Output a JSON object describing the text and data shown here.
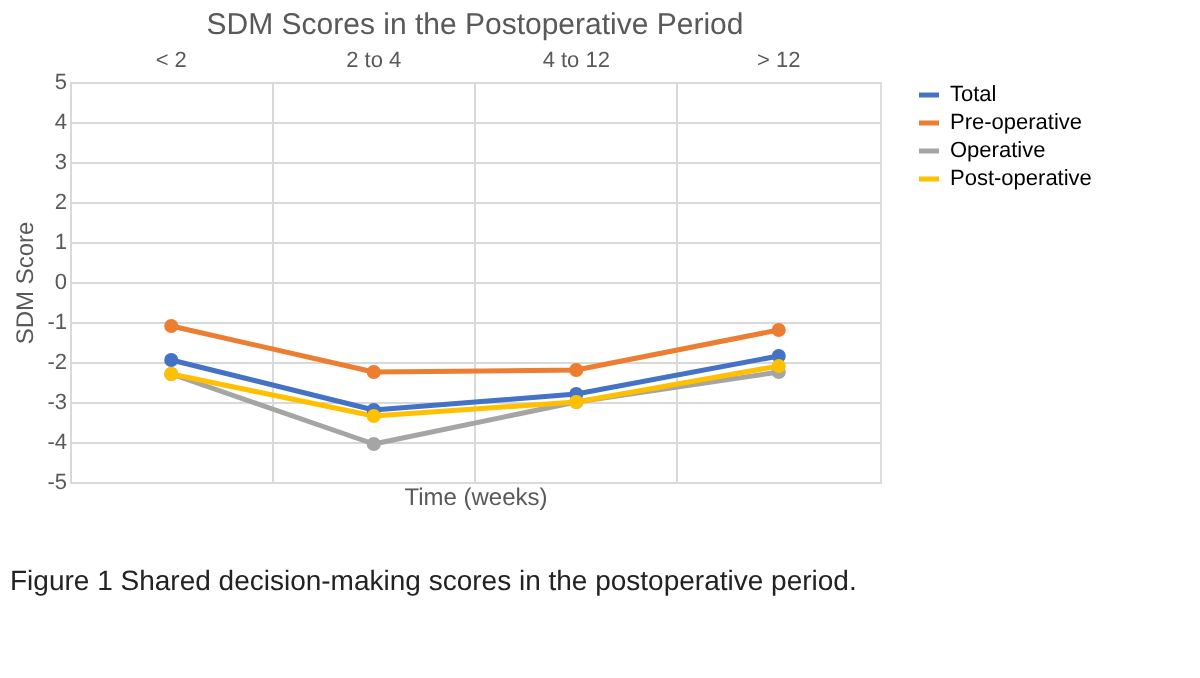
{
  "chart_data": {
    "type": "line",
    "title": "SDM Scores in the Postoperative Period",
    "xlabel": "Time (weeks)",
    "ylabel": "SDM Score",
    "categories": [
      "< 2",
      "2 to 4",
      "4 to 12",
      "> 12"
    ],
    "series": [
      {
        "name": "Total",
        "color": "#4472c4",
        "values": [
          -1.95,
          -3.2,
          -2.8,
          -1.85
        ]
      },
      {
        "name": "Pre-operative",
        "color": "#ed7d31",
        "values": [
          -1.1,
          -2.25,
          -2.2,
          -1.2
        ]
      },
      {
        "name": "Operative",
        "color": "#a5a5a5",
        "values": [
          -2.3,
          -4.05,
          -3.0,
          -2.25
        ]
      },
      {
        "name": "Post-operative",
        "color": "#ffc000",
        "values": [
          -2.3,
          -3.35,
          -3.0,
          -2.1
        ]
      }
    ],
    "ylim": [
      -5,
      5
    ],
    "yticks": [
      -5,
      -4,
      -3,
      -2,
      -1,
      0,
      1,
      2,
      3,
      4,
      5
    ],
    "grid": true,
    "legend": "right",
    "marker": "circle",
    "line_style": "solid",
    "annotations": [
      "Figure 1    Shared decision-making scores in the postoperative period."
    ]
  }
}
